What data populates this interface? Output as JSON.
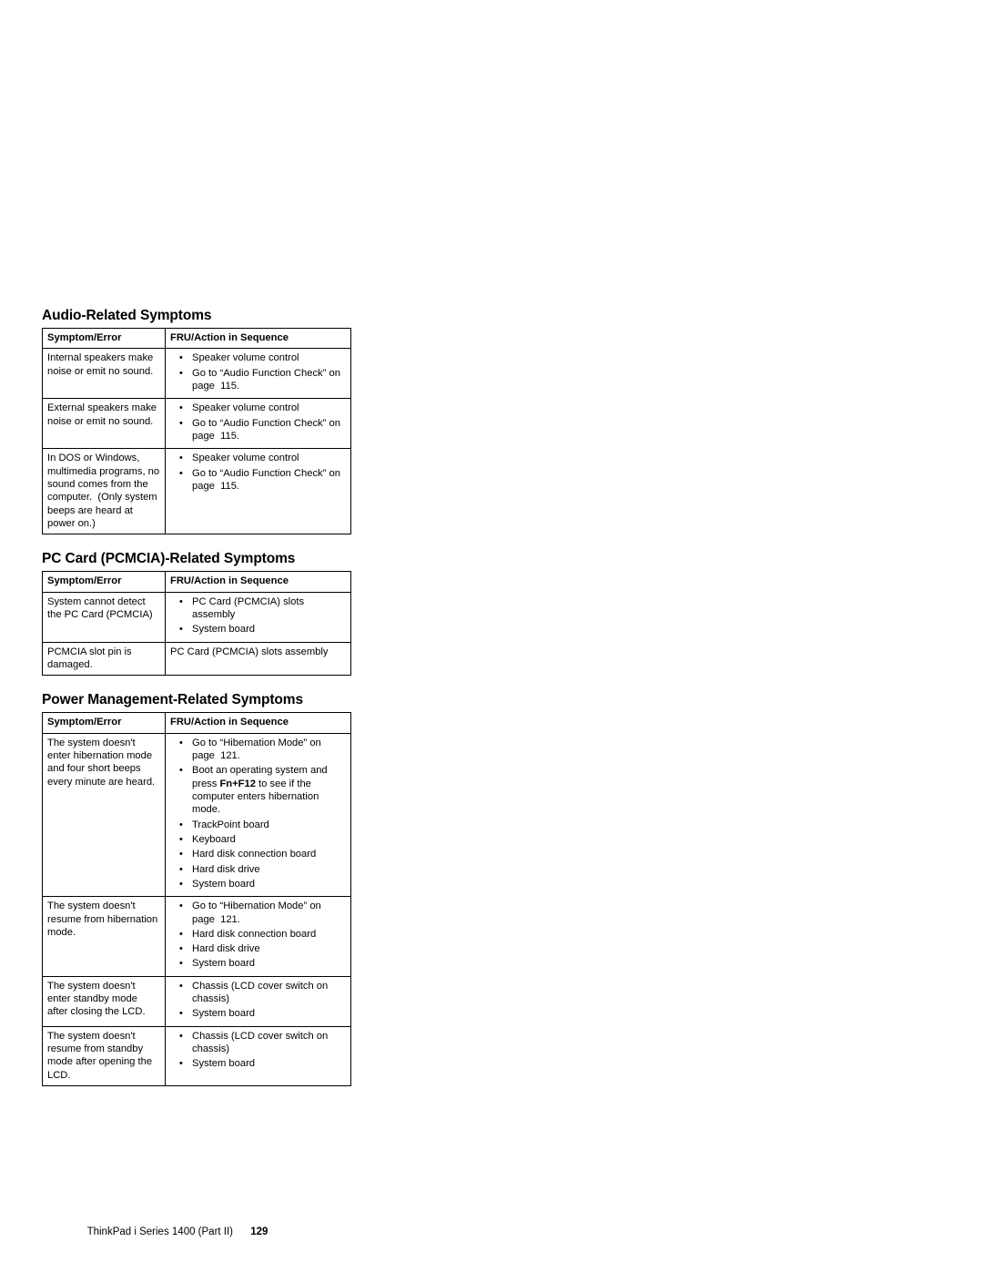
{
  "sections": {
    "audio": {
      "title": "Audio-Related Symptoms",
      "headers": {
        "c1": "Symptom/Error",
        "c2": "FRU/Action in Sequence"
      },
      "rows": [
        {
          "symptom": "Internal speakers make noise or emit no sound.",
          "actions": [
            "Speaker volume control",
            "Go to “Audio Function Check” on page  115."
          ]
        },
        {
          "symptom": "External speakers make noise or emit no sound.",
          "actions": [
            "Speaker volume control",
            "Go to “Audio Function Check” on page  115."
          ]
        },
        {
          "symptom": "In DOS or Windows, multimedia programs, no sound comes from the computer.  (Only system beeps are heard at power on.)",
          "actions": [
            "Speaker volume control",
            "Go to “Audio Function Check” on page  115."
          ]
        }
      ]
    },
    "pccard": {
      "title": "PC Card (PCMCIA)-Related Symptoms",
      "headers": {
        "c1": "Symptom/Error",
        "c2": "FRU/Action in Sequence"
      },
      "rows": [
        {
          "symptom": "System cannot detect the PC Card (PCMCIA)",
          "actions": [
            "PC Card (PCMCIA) slots assembly",
            "System board"
          ]
        },
        {
          "symptom": "PCMCIA slot pin is damaged.",
          "plain": "PC Card (PCMCIA) slots assembly"
        }
      ]
    },
    "power": {
      "title": "Power Management-Related Symptoms",
      "headers": {
        "c1": "Symptom/Error",
        "c2": "FRU/Action in Sequence"
      },
      "rows": [
        {
          "symptom": "The system doesn't enter hibernation mode and four short beeps every minute are heard.",
          "actions_html": [
            "Go to “Hibernation Mode” on page  121.",
            {
              "pre": "Boot an operating system and press ",
              "bold": "Fn+F12",
              "post": " to see if the computer enters hibernation mode."
            },
            "TrackPoint board",
            "Keyboard",
            "Hard disk connection board",
            "Hard disk drive",
            "System board"
          ]
        },
        {
          "symptom": "The system doesn't resume from hibernation mode.",
          "actions": [
            "Go to “Hibernation Mode” on page  121.",
            "Hard disk connection board",
            "Hard disk drive",
            "System board"
          ]
        },
        {
          "symptom": "The system doesn't enter standby mode after closing the LCD.",
          "actions": [
            "Chassis (LCD cover switch on chassis)",
            "System board"
          ]
        },
        {
          "symptom": "The system doesn't resume from standby mode after opening the LCD.",
          "actions": [
            "Chassis (LCD cover switch on chassis)",
            "System board"
          ]
        }
      ]
    }
  },
  "footer": {
    "text": "ThinkPad i Series 1400 (Part II)",
    "page": "129"
  }
}
